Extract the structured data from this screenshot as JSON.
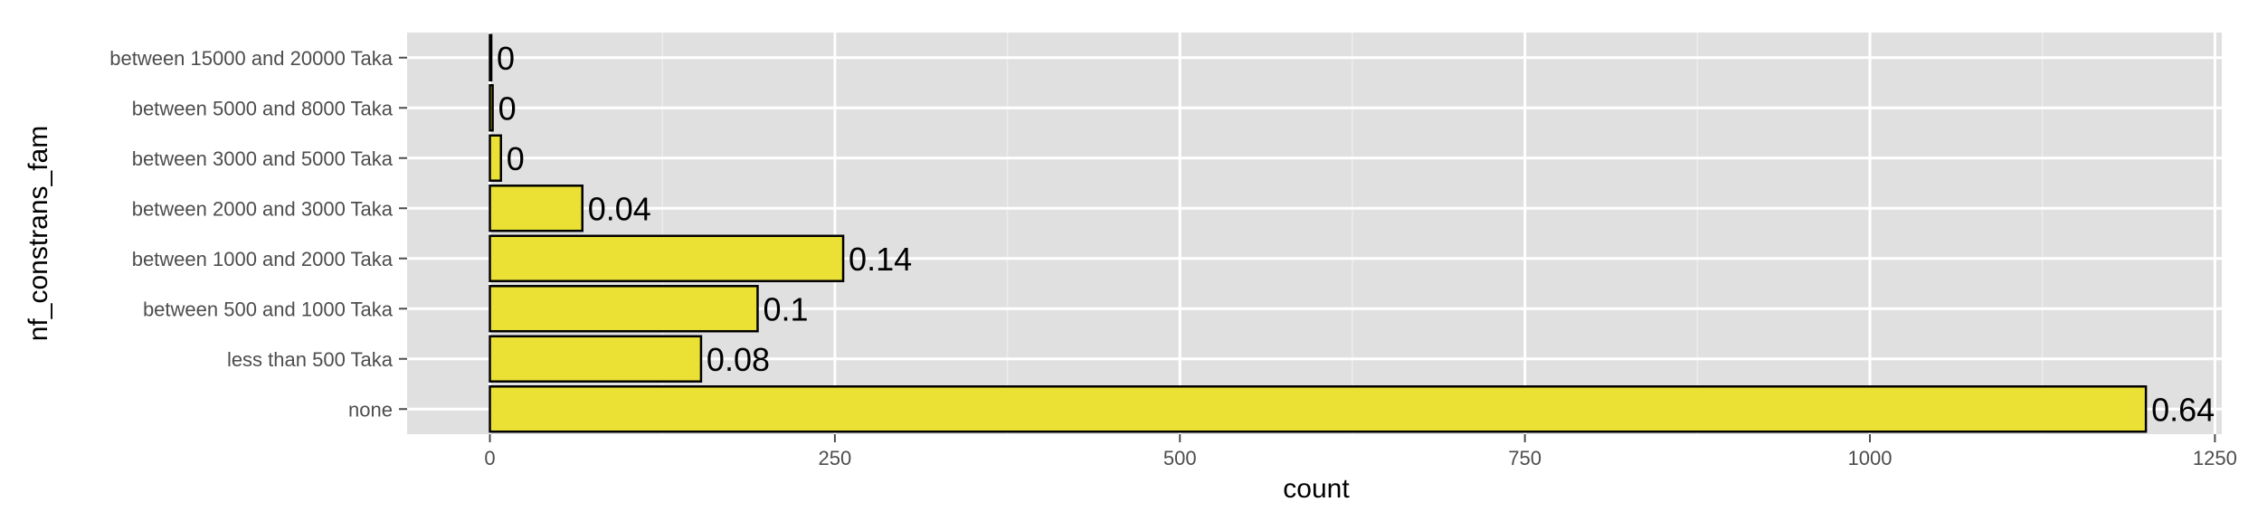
{
  "chart_data": {
    "type": "bar",
    "orientation": "horizontal",
    "title": "",
    "xlabel": "count",
    "ylabel": "nf_constrans_fam",
    "categories": [
      "none",
      "less than 500 Taka",
      "between 500 and 1000 Taka",
      "between 1000 and 2000 Taka",
      "between 2000 and 3000 Taka",
      "between 3000 and 5000 Taka",
      "between 5000 and 8000 Taka",
      "between 15000 and 20000 Taka"
    ],
    "values": [
      1200,
      153,
      194,
      256,
      67,
      8,
      2,
      1
    ],
    "data_labels": [
      "0.64",
      "0.08",
      "0.1",
      "0.14",
      "0.04",
      "0",
      "0",
      "0"
    ],
    "x_ticks": [
      0,
      250,
      500,
      750,
      1000,
      1250
    ],
    "xlim": [
      -60,
      1255
    ],
    "grid": true,
    "legend": "none",
    "colors": {
      "panel": "#e0e0e0",
      "grid_major": "#ffffff",
      "grid_minor": "#ececec",
      "bar_fill": "#ebe135",
      "bar_stroke": "#000000"
    }
  }
}
